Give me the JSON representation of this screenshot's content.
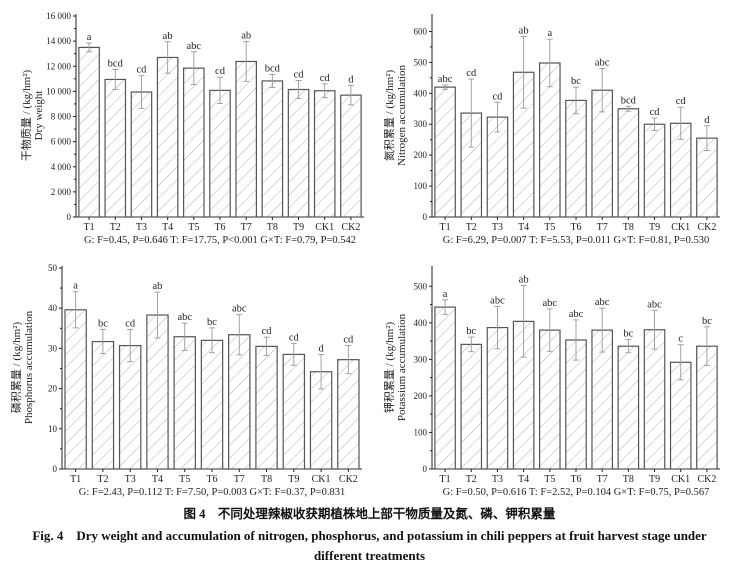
{
  "categories": [
    "T1",
    "T2",
    "T3",
    "T4",
    "T5",
    "T6",
    "T7",
    "T8",
    "T9",
    "CK1",
    "CK2"
  ],
  "chart_data": [
    {
      "type": "bar",
      "ylabel_zh": "干物质量 / (kg/hm²)",
      "ylabel_en": "Dry weight",
      "ylim": [
        0,
        16000
      ],
      "yticks": [
        0,
        2000,
        4000,
        6000,
        8000,
        10000,
        12000,
        14000,
        16000
      ],
      "ytick_labels": [
        "0",
        "2 000",
        "4 000",
        "6 000",
        "8 000",
        "10 000",
        "12 000",
        "14 000",
        "16 000"
      ],
      "values": [
        13500,
        10950,
        9950,
        12700,
        11850,
        10080,
        12380,
        10830,
        10150,
        10050,
        9700
      ],
      "errors": [
        350,
        800,
        1300,
        1250,
        1300,
        1050,
        1580,
        520,
        720,
        550,
        780
      ],
      "letters": [
        "a",
        "bcd",
        "cd",
        "ab",
        "abc",
        "cd",
        "ab",
        "bcd",
        "cd",
        "cd",
        "d"
      ],
      "stats": "G: F=0.45, P=0.646  T: F=17.75, P<0.001  G×T: F=0.79, P=0.542"
    },
    {
      "type": "bar",
      "ylabel_zh": "氮积累量 / (kg/hm²)",
      "ylabel_en": "Nitrogen accumulation",
      "ylim": [
        0,
        650
      ],
      "yticks": [
        0,
        100,
        200,
        300,
        400,
        500,
        600
      ],
      "ytick_labels": [
        "0",
        "100",
        "200",
        "300",
        "400",
        "500",
        "600"
      ],
      "values": [
        420,
        336,
        323,
        468,
        498,
        377,
        410,
        350,
        300,
        303,
        255
      ],
      "errors": [
        7,
        110,
        48,
        116,
        77,
        43,
        70,
        8,
        20,
        52,
        40
      ],
      "letters": [
        "abc",
        "cd",
        "cd",
        "ab",
        "a",
        "bc",
        "abc",
        "bcd",
        "cd",
        "cd",
        "d"
      ],
      "stats": "G: F=6.29, P=0.007  T: F=5.53, P=0.011  G×T: F=0.81, P=0.530"
    },
    {
      "type": "bar",
      "ylabel_zh": "磷积累量 / (kg/hm²)",
      "ylabel_en": "Phosphorus accumulation",
      "ylim": [
        0,
        50
      ],
      "yticks": [
        0,
        10,
        20,
        30,
        40,
        50
      ],
      "ytick_labels": [
        "0",
        "10",
        "20",
        "30",
        "40",
        "50"
      ],
      "values": [
        39.6,
        31.7,
        30.7,
        38.3,
        32.9,
        32.0,
        33.4,
        30.5,
        28.5,
        24.2,
        27.2
      ],
      "errors": [
        4.5,
        3.0,
        4.0,
        5.7,
        3.4,
        3.1,
        5.0,
        2.3,
        2.7,
        4.3,
        3.5
      ],
      "letters": [
        "a",
        "bc",
        "cd",
        "ab",
        "abc",
        "bc",
        "abc",
        "cd",
        "cd",
        "d",
        "cd"
      ],
      "stats": "G: F=2.43, P=0.112  T: F=7.50, P=0.003  G×T: F=0.37, P=0.831"
    },
    {
      "type": "bar",
      "ylabel_zh": "钾积累量 / (kg/hm²)",
      "ylabel_en": "Potassium accumulation",
      "ylim": [
        0,
        550
      ],
      "yticks": [
        0,
        100,
        200,
        300,
        400,
        500
      ],
      "ytick_labels": [
        "0",
        "100",
        "200",
        "300",
        "400",
        "500"
      ],
      "values": [
        443,
        341,
        387,
        404,
        380,
        353,
        380,
        336,
        381,
        292,
        336
      ],
      "errors": [
        20,
        20,
        58,
        98,
        58,
        55,
        60,
        18,
        53,
        48,
        53
      ],
      "letters": [
        "a",
        "bc",
        "abc",
        "ab",
        "abc",
        "abc",
        "abc",
        "bc",
        "abc",
        "c",
        "bc"
      ],
      "stats": "G: F=0.50, P=0.616  T: F=2.52, P=0.104  G×T: F=0.75, P=0.567"
    }
  ],
  "caption": {
    "zh": "图 4　不同处理辣椒收获期植株地上部干物质量及氮、磷、钾积累量",
    "en": "Fig. 4　Dry weight and accumulation of nitrogen, phosphorus, and potassium in chili peppers at fruit harvest stage under different treatments"
  },
  "colors": {
    "bar_edge": "#555555",
    "hatch": "#999999",
    "error": "#999999",
    "axis": "#222222"
  }
}
